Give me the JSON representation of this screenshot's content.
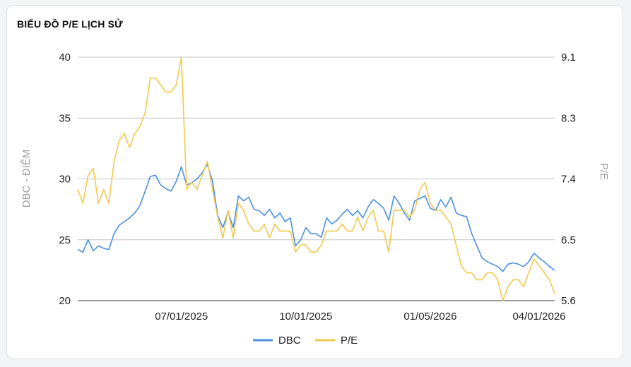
{
  "title": "BIỂU ĐỒ P/E LỊCH SỬ",
  "chart_data": {
    "type": "line",
    "title": "BIỂU ĐỒ P/E LỊCH SỬ",
    "ylabel_left": "DBC - ĐIỂM",
    "ylabel_right": "P/E",
    "left_axis": {
      "ylim": [
        20,
        40
      ],
      "ticks": [
        "20",
        "25",
        "30",
        "35",
        "40"
      ]
    },
    "right_axis": {
      "ylim": [
        5.6,
        9.1
      ],
      "ticks": [
        "5.6",
        "6.5",
        "7.4",
        "8.3",
        "9.1"
      ]
    },
    "x_ticks": [
      "07/01/2025",
      "10/01/2025",
      "01/05/2026",
      "04/01/2026"
    ],
    "x_tick_index": [
      20,
      44,
      68,
      89
    ],
    "grid": true,
    "legend_position": "bottom",
    "series": [
      {
        "name": "DBC",
        "color": "#4a90e2",
        "axis": "left",
        "values": [
          24.2,
          24.0,
          25.0,
          24.1,
          24.5,
          24.3,
          24.2,
          25.5,
          26.2,
          26.5,
          26.8,
          27.2,
          27.8,
          29.0,
          30.2,
          30.3,
          29.5,
          29.2,
          29.0,
          29.8,
          31.0,
          29.5,
          29.7,
          30.0,
          30.5,
          31.2,
          29.8,
          27.0,
          26.0,
          27.3,
          26.0,
          28.6,
          28.2,
          28.5,
          27.5,
          27.4,
          27.0,
          27.5,
          26.8,
          27.2,
          26.5,
          26.8,
          24.5,
          25.0,
          26.0,
          25.5,
          25.5,
          25.2,
          26.8,
          26.3,
          26.6,
          27.1,
          27.5,
          27.0,
          27.4,
          26.8,
          27.7,
          28.3,
          28.0,
          27.6,
          26.6,
          28.6,
          28.0,
          27.2,
          26.6,
          28.2,
          28.4,
          28.6,
          27.6,
          27.4,
          28.3,
          27.7,
          28.5,
          27.2,
          27.0,
          26.9,
          25.5,
          24.5,
          23.5,
          23.2,
          23.0,
          22.8,
          22.4,
          23.0,
          23.1,
          23.0,
          22.8,
          23.2,
          23.9,
          23.5,
          23.2,
          22.8,
          22.5
        ]
      },
      {
        "name": "P/E",
        "color": "#f2c94c",
        "axis": "right",
        "values": [
          7.2,
          7.0,
          7.4,
          7.5,
          7.0,
          7.2,
          7.0,
          7.6,
          7.9,
          8.0,
          7.8,
          8.0,
          8.1,
          8.3,
          8.8,
          8.8,
          8.7,
          8.6,
          8.6,
          8.7,
          9.1,
          7.2,
          7.3,
          7.2,
          7.4,
          7.6,
          7.2,
          6.8,
          6.5,
          6.9,
          6.5,
          7.0,
          6.9,
          6.7,
          6.6,
          6.6,
          6.7,
          6.5,
          6.7,
          6.6,
          6.6,
          6.6,
          6.3,
          6.4,
          6.4,
          6.3,
          6.3,
          6.4,
          6.6,
          6.6,
          6.6,
          6.7,
          6.6,
          6.6,
          6.8,
          6.6,
          6.8,
          6.9,
          6.6,
          6.6,
          6.3,
          6.9,
          6.9,
          6.9,
          6.8,
          6.9,
          7.2,
          7.3,
          7.0,
          6.9,
          6.9,
          6.8,
          6.7,
          6.4,
          6.1,
          6.0,
          6.0,
          5.9,
          5.9,
          6.0,
          6.0,
          5.9,
          5.6,
          5.8,
          5.9,
          5.9,
          5.8,
          6.0,
          6.2,
          6.1,
          6.0,
          5.9,
          5.7
        ]
      }
    ]
  }
}
